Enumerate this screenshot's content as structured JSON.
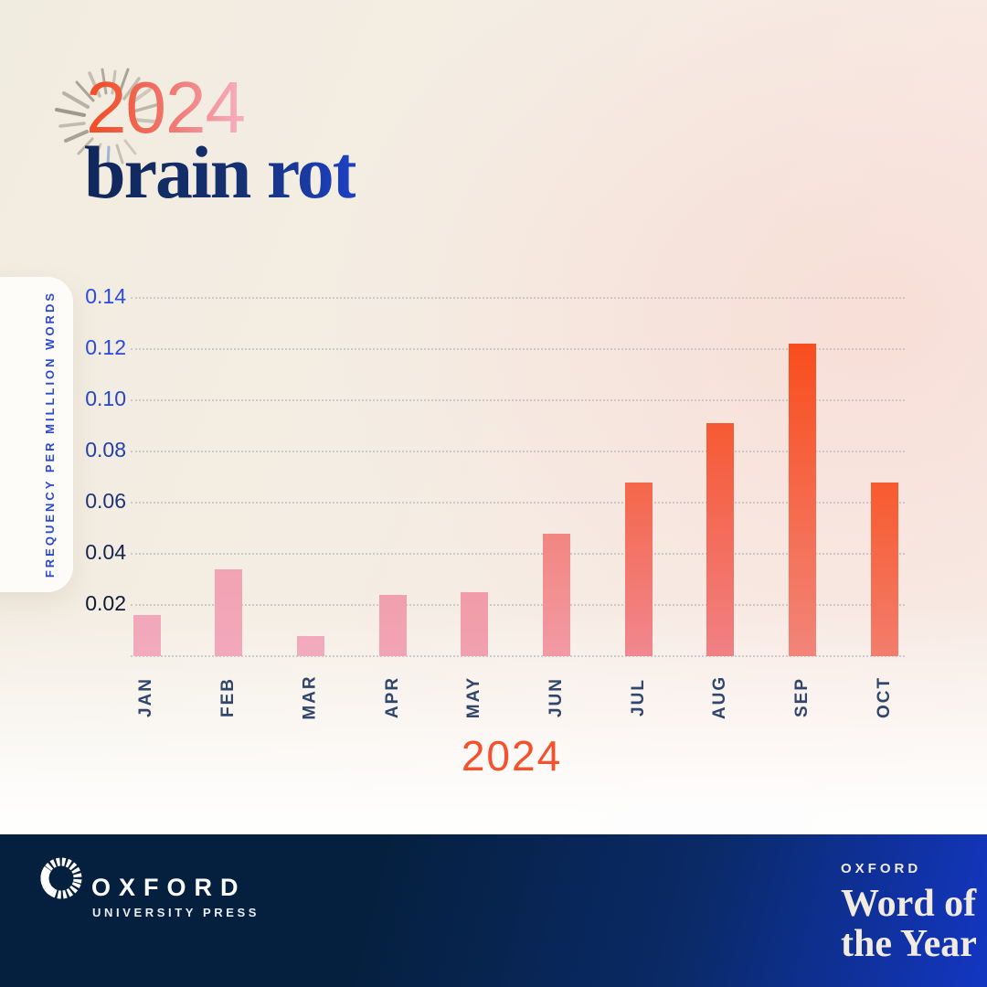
{
  "header": {
    "year": "2024",
    "word": "brain rot"
  },
  "chart_data": {
    "type": "bar",
    "xlabel": "2024",
    "ylabel": "FREQUENCY PER MILLLION WORDS",
    "categories": [
      "JAN",
      "FEB",
      "MAR",
      "APR",
      "MAY",
      "JUN",
      "JUL",
      "AUG",
      "SEP",
      "OCT"
    ],
    "values": [
      0.016,
      0.034,
      0.008,
      0.024,
      0.025,
      0.048,
      0.068,
      0.091,
      0.122,
      0.068
    ],
    "ylim": [
      0,
      0.15
    ],
    "grid": "horizontal-dotted",
    "legend": "none",
    "yticks": [
      {
        "value": 0.14,
        "label": "0.14",
        "color": "#2c4be0"
      },
      {
        "value": 0.12,
        "label": "0.12",
        "color": "#2b49d6"
      },
      {
        "value": 0.1,
        "label": "0.10",
        "color": "#2845c2"
      },
      {
        "value": 0.08,
        "label": "0.08",
        "color": "#2340a6"
      },
      {
        "value": 0.06,
        "label": "0.06",
        "color": "#1d3478"
      },
      {
        "value": 0.04,
        "label": "0.04",
        "color": "#16254e"
      },
      {
        "value": 0.02,
        "label": "0.02",
        "color": "#0f1a33"
      }
    ],
    "bar_colors": [
      {
        "top": "#f2a7ba",
        "bottom": "#f2aabd"
      },
      {
        "top": "#f2a3b3",
        "bottom": "#f2a8bb"
      },
      {
        "top": "#f2a8bb",
        "bottom": "#f2abbe"
      },
      {
        "top": "#f19fae",
        "bottom": "#f2a4b4"
      },
      {
        "top": "#f19ca8",
        "bottom": "#f1a0af"
      },
      {
        "top": "#f28680",
        "bottom": "#f29aa5"
      },
      {
        "top": "#f4674a",
        "bottom": "#f18790"
      },
      {
        "top": "#f65a33",
        "bottom": "#f18085"
      },
      {
        "top": "#f94d1d",
        "bottom": "#f28579"
      },
      {
        "top": "#f75a2e",
        "bottom": "#f37d6d"
      }
    ]
  },
  "footer": {
    "oup_wordmark": "OXFORD",
    "oup_subtitle": "UNIVERSITY PRESS",
    "brand_kicker": "OXFORD",
    "brand_line1": "Word of",
    "brand_line2": "the Year"
  },
  "colors": {
    "accent_orange": "#f4512c",
    "headline_navy": "#10275a",
    "headline_blue": "#1e41c4",
    "axis_label_blue": "#2b49cf",
    "month_label_navy": "#30466b",
    "footer_navy": "#05203f",
    "footer_blue": "#1336c2",
    "footer_cream": "#f2ebe1",
    "background_cream": "#f2ede2"
  }
}
